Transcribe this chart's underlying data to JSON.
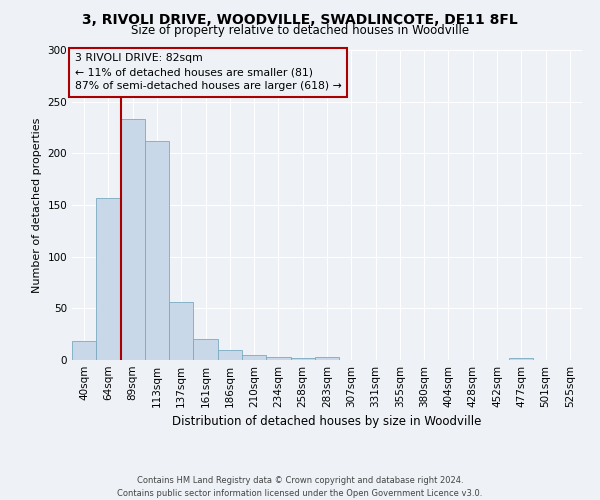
{
  "title": "3, RIVOLI DRIVE, WOODVILLE, SWADLINCOTE, DE11 8FL",
  "subtitle": "Size of property relative to detached houses in Woodville",
  "xlabel": "Distribution of detached houses by size in Woodville",
  "ylabel": "Number of detached properties",
  "bin_labels": [
    "40sqm",
    "64sqm",
    "89sqm",
    "113sqm",
    "137sqm",
    "161sqm",
    "186sqm",
    "210sqm",
    "234sqm",
    "258sqm",
    "283sqm",
    "307sqm",
    "331sqm",
    "355sqm",
    "380sqm",
    "404sqm",
    "428sqm",
    "452sqm",
    "477sqm",
    "501sqm",
    "525sqm"
  ],
  "bar_heights": [
    18,
    157,
    233,
    212,
    56,
    20,
    10,
    5,
    3,
    2,
    3,
    0,
    0,
    0,
    0,
    0,
    0,
    0,
    2,
    0,
    0
  ],
  "bar_color": "#c8d8e8",
  "bar_edge_color": "#7aaabf",
  "vline_color": "#aa0000",
  "ylim": [
    0,
    300
  ],
  "yticks": [
    0,
    50,
    100,
    150,
    200,
    250,
    300
  ],
  "annotation_title": "3 RIVOLI DRIVE: 82sqm",
  "annotation_line1": "← 11% of detached houses are smaller (81)",
  "annotation_line2": "87% of semi-detached houses are larger (618) →",
  "annotation_box_color": "#aa0000",
  "bg_color": "#eef2f7",
  "footer1": "Contains HM Land Registry data © Crown copyright and database right 2024.",
  "footer2": "Contains public sector information licensed under the Open Government Licence v3.0."
}
